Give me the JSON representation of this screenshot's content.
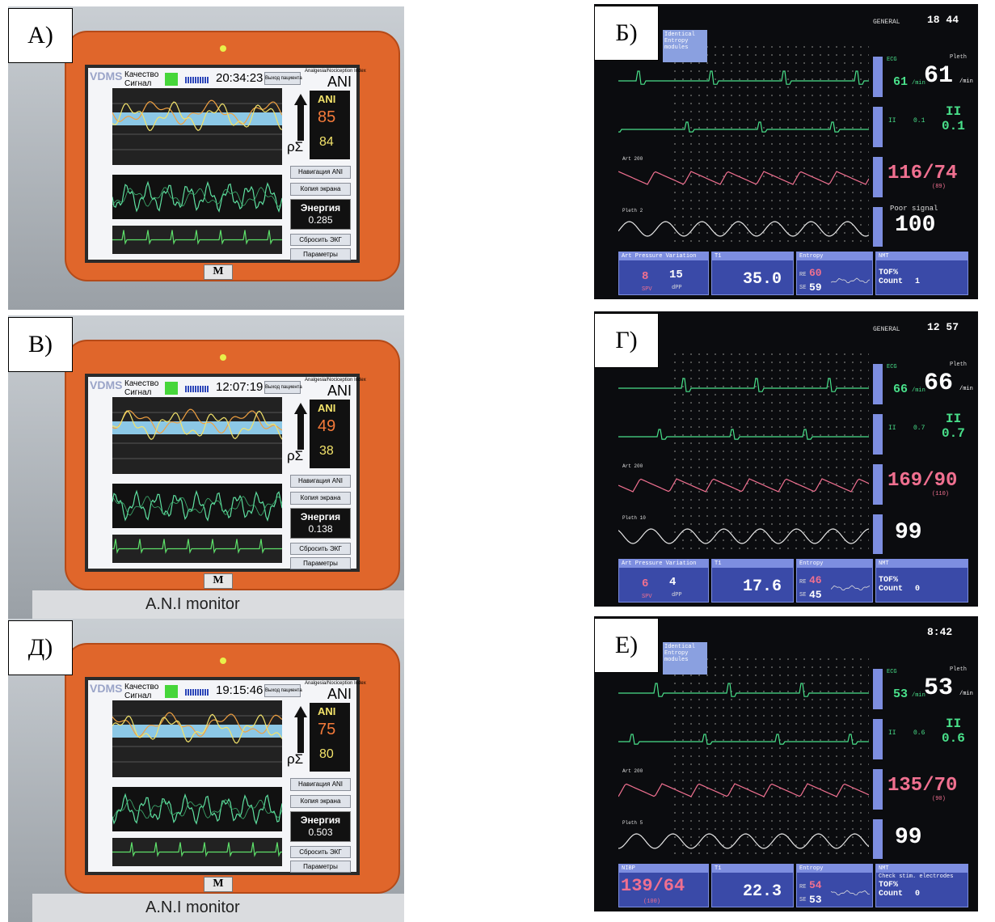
{
  "panels": [
    {
      "kind": "ani",
      "label": "А)",
      "brand": "VDMS",
      "quality": "Качество",
      "signal": "Сигнал",
      "time": "20:34:23",
      "exit": "Выход пациента",
      "index_title": "Analgesia/Nociception Index",
      "ani_title": "ANI",
      "ani_box": "ANI",
      "ani_mean": 85,
      "ani_inst": 84,
      "rho": "ρΣ",
      "nav": "Навигация ANI",
      "copy": "Копия экрана",
      "energy_label": "Энергия",
      "energy": 0.285,
      "reset": "Сбросить ЭКГ",
      "params": "Параметры",
      "logo": "M"
    },
    {
      "kind": "ge",
      "label": "Б)",
      "banner": "Identical Entropy modules",
      "general": "GENERAL",
      "time": "18 44",
      "hr_label": "ECG",
      "hr": 61,
      "hr_unit": "/min",
      "pleth_label": "Pleth",
      "pleth_hr": 61,
      "pleth_unit": "/min",
      "st_lead": "II",
      "st_val": "0.1",
      "st_big_lead": "II",
      "st_big": "0.1",
      "art_scale": "Art 200",
      "art": "116/74",
      "art_mean": "(89)",
      "pleth_scale": "Pleth 2",
      "spo2_note": "Poor signal",
      "spo2": 100,
      "box1_title": "Art Pressure Variation",
      "spv": 8,
      "dpp": 15,
      "spv_label": "SPV",
      "dpp_label": "dPP",
      "t_title": "T1",
      "temp": "35.0",
      "ent_title": "Entropy",
      "re_label": "RE",
      "re": 60,
      "se_label": "SE",
      "se": 59,
      "nmt_title": "NMT",
      "tof": "TOF%",
      "count_label": "Count",
      "count": 1
    },
    {
      "kind": "ani",
      "label": "В)",
      "brand": "VDMS",
      "quality": "Качество",
      "signal": "Сигнал",
      "time": "12:07:19",
      "exit": "Выход пациента",
      "index_title": "Analgesia/Nociception Index",
      "ani_title": "ANI",
      "ani_box": "ANI",
      "ani_mean": 49,
      "ani_inst": 38,
      "rho": "ρΣ",
      "nav": "Навигация ANI",
      "copy": "Копия экрана",
      "energy_label": "Энергия",
      "energy": 0.138,
      "reset": "Сбросить ЭКГ",
      "params": "Параметры",
      "logo": "M",
      "case_label": "A.N.I monitor"
    },
    {
      "kind": "ge",
      "label": "Г)",
      "general": "GENERAL",
      "time": "12 57",
      "hr_label": "ECG",
      "hr": 66,
      "hr_unit": "/min",
      "pleth_label": "Pleth",
      "pleth_hr": 66,
      "pleth_unit": "/min",
      "st_lead": "II",
      "st_val": "0.7",
      "st_big_lead": "II",
      "st_big": "0.7",
      "art_scale": "Art 200",
      "art": "169/90",
      "art_mean": "(110)",
      "pleth_scale": "Pleth 10",
      "spo2": 99,
      "box1_title": "Art Pressure Variation",
      "spv": 6,
      "dpp": 4,
      "spv_label": "SPV",
      "dpp_label": "dPP",
      "t_title": "T1",
      "temp": "17.6",
      "ent_title": "Entropy",
      "re_label": "RE",
      "re": 46,
      "se_label": "SE",
      "se": 45,
      "nmt_title": "NMT",
      "tof": "TOF%",
      "count_label": "Count",
      "count": 0
    },
    {
      "kind": "ani",
      "label": "Д)",
      "brand": "VDMS",
      "quality": "Качество",
      "signal": "Сигнал",
      "time": "19:15:46",
      "exit": "Выход пациента",
      "index_title": "Analgesia/Nociception Index",
      "ani_title": "ANI",
      "ani_box": "ANI",
      "ani_mean": 75,
      "ani_inst": 80,
      "rho": "ρΣ",
      "nav": "Навигация ANI",
      "copy": "Копия экрана",
      "energy_label": "Энергия",
      "energy": 0.503,
      "reset": "Сбросить ЭКГ",
      "params": "Параметры",
      "logo": "M",
      "case_label": "A.N.I monitor"
    },
    {
      "kind": "ge",
      "label": "Е)",
      "banner": "Identical Entropy modules",
      "time": "8:42",
      "hr_label": "ECG",
      "hr": 53,
      "hr_unit": "/min",
      "pleth_label": "Pleth",
      "pleth_hr": 53,
      "pleth_unit": "/min",
      "st_lead": "II",
      "st_val": "0.6",
      "st_big_lead": "II",
      "st_big": "0.6",
      "art_scale": "Art 200",
      "art": "135/70",
      "art_mean": "(90)",
      "pleth_scale": "Pleth 5",
      "spo2": 99,
      "box1_title": "NIBP",
      "nibp": "139/64",
      "nibp_mean": "(100)",
      "t_title": "T1",
      "temp": "22.3",
      "ent_title": "Entropy",
      "re_label": "RE",
      "re": 54,
      "se_label": "SE",
      "se": 53,
      "nmt_title": "NMT",
      "nmt_note": "Check stim. electrodes",
      "tof": "TOF%",
      "count_label": "Count",
      "count": 0
    }
  ]
}
